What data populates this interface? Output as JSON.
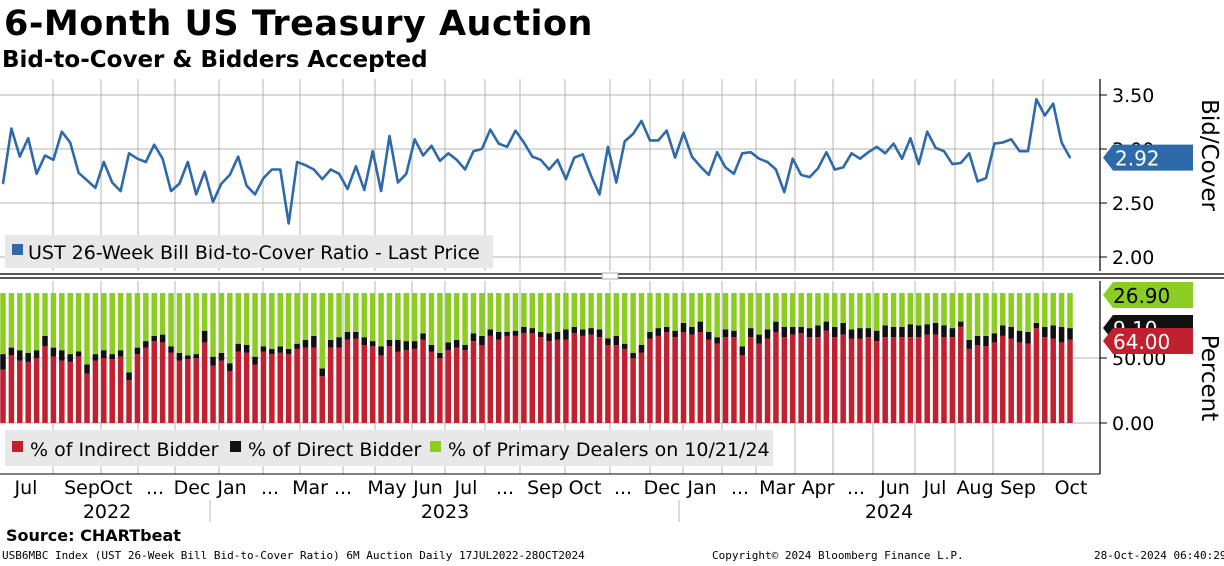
{
  "header": {
    "title": "6-Month US Treasury Auction",
    "subtitle": "Bid-to-Cover & Bidders Accepted"
  },
  "chart_data": [
    {
      "type": "line",
      "panel": "top",
      "ylabel": "Bid/Cover",
      "ylim": [
        1.8,
        3.7
      ],
      "yticks": [
        "3.50",
        "3.00",
        "2.50",
        "2.00"
      ],
      "grid": true,
      "legend_position": "bottom-left",
      "series": [
        {
          "name": "UST 26-Week Bill Bid-to-Cover Ratio - Last Price",
          "color": "#2f6aa8",
          "last_value_label": "2.92",
          "values": [
            2.68,
            3.19,
            2.93,
            3.1,
            2.77,
            2.94,
            2.9,
            3.16,
            3.06,
            2.78,
            2.71,
            2.64,
            2.88,
            2.69,
            2.61,
            2.96,
            2.91,
            2.88,
            3.04,
            2.91,
            2.61,
            2.68,
            2.88,
            2.58,
            2.79,
            2.51,
            2.68,
            2.76,
            2.93,
            2.66,
            2.58,
            2.73,
            2.81,
            2.81,
            2.31,
            2.88,
            2.85,
            2.81,
            2.72,
            2.81,
            2.77,
            2.63,
            2.84,
            2.62,
            2.98,
            2.61,
            3.12,
            2.69,
            2.77,
            3.09,
            2.94,
            3.03,
            2.89,
            2.96,
            2.9,
            2.81,
            2.98,
            3.0,
            3.18,
            3.05,
            3.02,
            3.17,
            3.06,
            2.93,
            2.9,
            2.81,
            2.9,
            2.72,
            2.92,
            2.95,
            2.75,
            2.58,
            3.02,
            2.69,
            3.07,
            3.14,
            3.26,
            3.08,
            3.08,
            3.17,
            2.92,
            3.15,
            2.93,
            2.84,
            2.76,
            2.97,
            2.83,
            2.77,
            2.96,
            2.97,
            2.91,
            2.88,
            2.81,
            2.6,
            2.91,
            2.76,
            2.74,
            2.82,
            2.97,
            2.81,
            2.83,
            2.96,
            2.91,
            2.97,
            3.02,
            2.96,
            3.05,
            2.91,
            3.1,
            2.86,
            3.16,
            3.01,
            2.98,
            2.86,
            2.87,
            2.96,
            2.7,
            2.73,
            3.05,
            3.06,
            3.09,
            2.98,
            2.98,
            3.46,
            3.31,
            3.42,
            3.06,
            2.92
          ]
        }
      ]
    },
    {
      "type": "bar",
      "stacked": true,
      "panel": "bottom",
      "ylabel": "Percent",
      "ylim": [
        -48,
        118
      ],
      "yticks": [
        "50.00",
        "0.00"
      ],
      "grid": true,
      "legend_position": "bottom-left",
      "x_month_labels": [
        "Jul",
        "Sep",
        "Oct",
        "...",
        "Dec",
        "Jan",
        "...",
        "Mar",
        "...",
        "May",
        "Jun",
        "Jul",
        "...",
        "Sep",
        "Oct",
        "...",
        "Dec",
        "Jan",
        "...",
        "Mar",
        "Apr",
        "...",
        "Jun",
        "Jul",
        "Aug",
        "Sep",
        "Oct"
      ],
      "x_year_labels": [
        "2022",
        "2023",
        "2024"
      ],
      "series": [
        {
          "name": "% of Indirect Bidder",
          "color": "#c0202f",
          "last_value_label": "64.00",
          "values": [
            41,
            52,
            48,
            47,
            50,
            59,
            51,
            48,
            47,
            51,
            38,
            48,
            50,
            49,
            51,
            33,
            53,
            58,
            63,
            62,
            54,
            48,
            49,
            50,
            62,
            44,
            48,
            40,
            55,
            54,
            45,
            55,
            53,
            54,
            53,
            57,
            58,
            58,
            36,
            58,
            58,
            64,
            65,
            60,
            59,
            52,
            59,
            55,
            56,
            57,
            64,
            55,
            50,
            56,
            58,
            56,
            63,
            60,
            67,
            64,
            67,
            67,
            69,
            69,
            66,
            63,
            64,
            64,
            69,
            67,
            68,
            66,
            60,
            60,
            57,
            50,
            54,
            65,
            67,
            70,
            66,
            70,
            68,
            70,
            64,
            61,
            66,
            66,
            52,
            66,
            61,
            65,
            70,
            66,
            68,
            69,
            66,
            66,
            71,
            66,
            68,
            65,
            65,
            66,
            63,
            66,
            66,
            66,
            66,
            66,
            68,
            68,
            66,
            66,
            74,
            57,
            60,
            59,
            62,
            67,
            65,
            62,
            61,
            73,
            66,
            65,
            62,
            64
          ]
        },
        {
          "name": "% of Direct Bidder",
          "color": "#111111",
          "last_value_label": "9.10",
          "values": [
            12,
            6,
            8,
            7,
            6,
            8,
            7,
            8,
            6,
            4,
            7,
            5,
            6,
            4,
            5,
            6,
            5,
            5,
            4,
            6,
            5,
            6,
            3,
            3,
            9,
            7,
            6,
            6,
            6,
            6,
            6,
            4,
            4,
            5,
            4,
            4,
            6,
            9,
            6,
            6,
            8,
            6,
            5,
            6,
            4,
            7,
            5,
            9,
            7,
            6,
            5,
            5,
            4,
            6,
            6,
            4,
            6,
            7,
            5,
            6,
            3,
            4,
            5,
            4,
            4,
            6,
            6,
            8,
            5,
            5,
            5,
            6,
            5,
            7,
            4,
            4,
            6,
            5,
            6,
            4,
            5,
            7,
            6,
            8,
            6,
            5,
            6,
            5,
            7,
            7,
            7,
            7,
            8,
            8,
            6,
            5,
            7,
            9,
            7,
            8,
            9,
            7,
            8,
            7,
            8,
            9,
            8,
            8,
            10,
            9,
            8,
            9,
            9,
            7,
            4,
            7,
            7,
            8,
            7,
            8,
            9,
            9,
            9,
            4,
            8,
            10,
            12,
            9
          ]
        },
        {
          "name": "% of Primary Dealers on 10/21/24",
          "color": "#8ccd23",
          "last_value_label": "26.90",
          "values": []
        }
      ]
    }
  ],
  "source": "Source: CHARTbeat",
  "footer": {
    "left": "USB6MBC Index (UST 26-Week Bill Bid-to-Cover Ratio) 6M Auction  Daily 17JUL2022-28OCT2024",
    "center": "Copyright© 2024 Bloomberg Finance L.P.",
    "right": "28-Oct-2024 06:40:29"
  }
}
